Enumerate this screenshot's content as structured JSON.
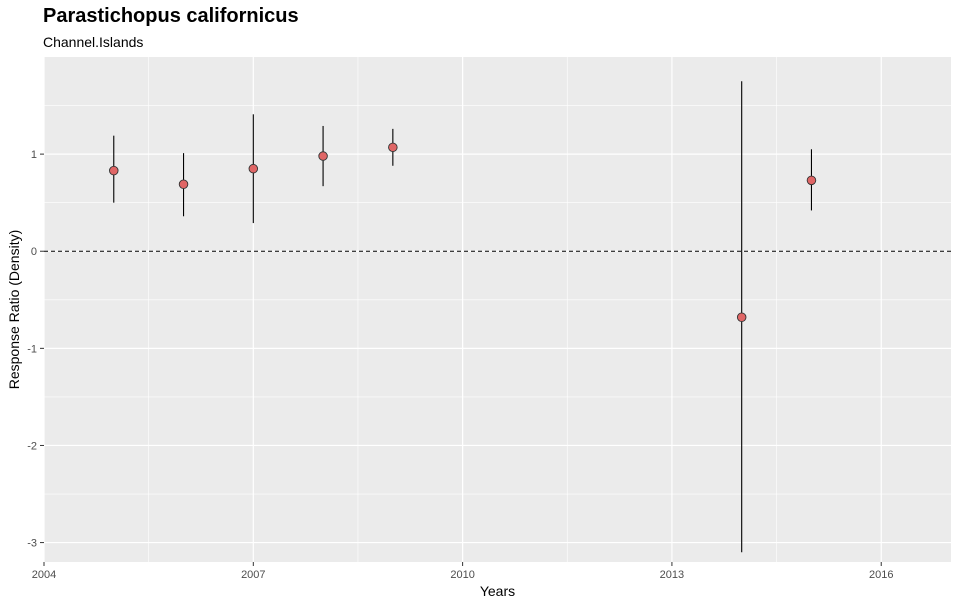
{
  "chart_data": {
    "type": "scatter",
    "title": "Parastichopus californicus",
    "subtitle": "Channel.Islands",
    "xlabel": "Years",
    "ylabel": "Response Ratio (Density)",
    "xlim": [
      2004,
      2017
    ],
    "ylim": [
      -3.2,
      2.0
    ],
    "x_ticks": [
      2004,
      2007,
      2010,
      2013,
      2016
    ],
    "y_ticks": [
      -3,
      -2,
      -1,
      0,
      1
    ],
    "reference_line": {
      "y": 0,
      "style": "dashed"
    },
    "grid": true,
    "point_color": "#E06666",
    "panel_color": "#EBEBEB",
    "points": [
      {
        "x": 2005,
        "y": 0.83,
        "ymin": 0.5,
        "ymax": 1.19
      },
      {
        "x": 2006,
        "y": 0.69,
        "ymin": 0.36,
        "ymax": 1.01
      },
      {
        "x": 2007,
        "y": 0.85,
        "ymin": 0.29,
        "ymax": 1.41
      },
      {
        "x": 2008,
        "y": 0.98,
        "ymin": 0.67,
        "ymax": 1.29
      },
      {
        "x": 2009,
        "y": 1.07,
        "ymin": 0.88,
        "ymax": 1.26
      },
      {
        "x": 2014,
        "y": -0.68,
        "ymin": -3.1,
        "ymax": 1.75
      },
      {
        "x": 2015,
        "y": 0.73,
        "ymin": 0.42,
        "ymax": 1.05
      }
    ]
  }
}
